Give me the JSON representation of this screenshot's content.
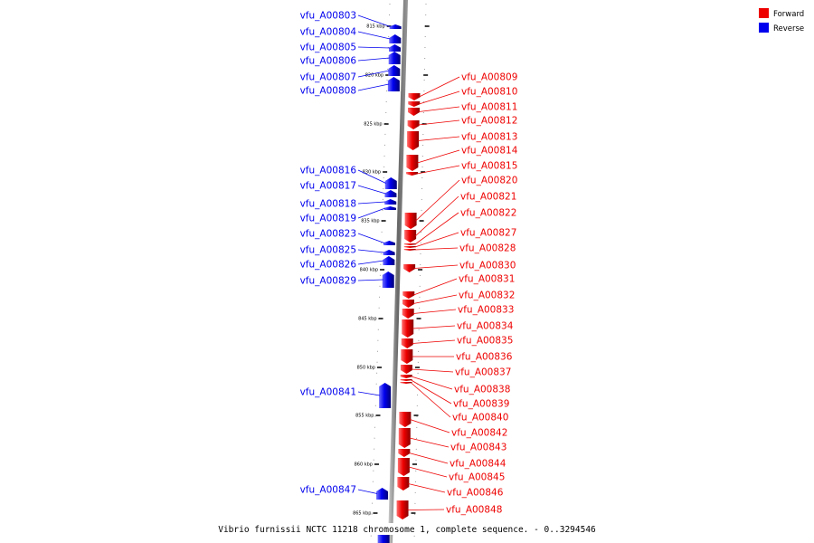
{
  "caption": "Vibrio furnissii NCTC 11218 chromosome 1, complete sequence. - 0..3294546",
  "legend": {
    "forward": {
      "label": "Forward",
      "color": "#ee0000"
    },
    "reverse": {
      "label": "Reverse",
      "color": "#0000ee"
    }
  },
  "ticks": [
    "815 kbp",
    "820 kbp",
    "825 kbp",
    "830 kbp",
    "835 kbp",
    "840 kbp",
    "845 kbp",
    "850 kbp",
    "855 kbp",
    "860 kbp",
    "865 kbp"
  ],
  "reverse_genes": [
    "vfu_A00803",
    "vfu_A00804",
    "vfu_A00805",
    "vfu_A00806",
    "vfu_A00807",
    "vfu_A00808",
    "vfu_A00816",
    "vfu_A00817",
    "vfu_A00818",
    "vfu_A00819",
    "vfu_A00823",
    "vfu_A00825",
    "vfu_A00826",
    "vfu_A00829",
    "vfu_A00841",
    "vfu_A00847"
  ],
  "forward_genes": [
    "vfu_A00809",
    "vfu_A00810",
    "vfu_A00811",
    "vfu_A00812",
    "vfu_A00813",
    "vfu_A00814",
    "vfu_A00815",
    "vfu_A00820",
    "vfu_A00821",
    "vfu_A00822",
    "vfu_A00827",
    "vfu_A00828",
    "vfu_A00830",
    "vfu_A00831",
    "vfu_A00832",
    "vfu_A00833",
    "vfu_A00834",
    "vfu_A00835",
    "vfu_A00836",
    "vfu_A00837",
    "vfu_A00838",
    "vfu_A00839",
    "vfu_A00840",
    "vfu_A00842",
    "vfu_A00843",
    "vfu_A00844",
    "vfu_A00845",
    "vfu_A00846",
    "vfu_A00848"
  ]
}
